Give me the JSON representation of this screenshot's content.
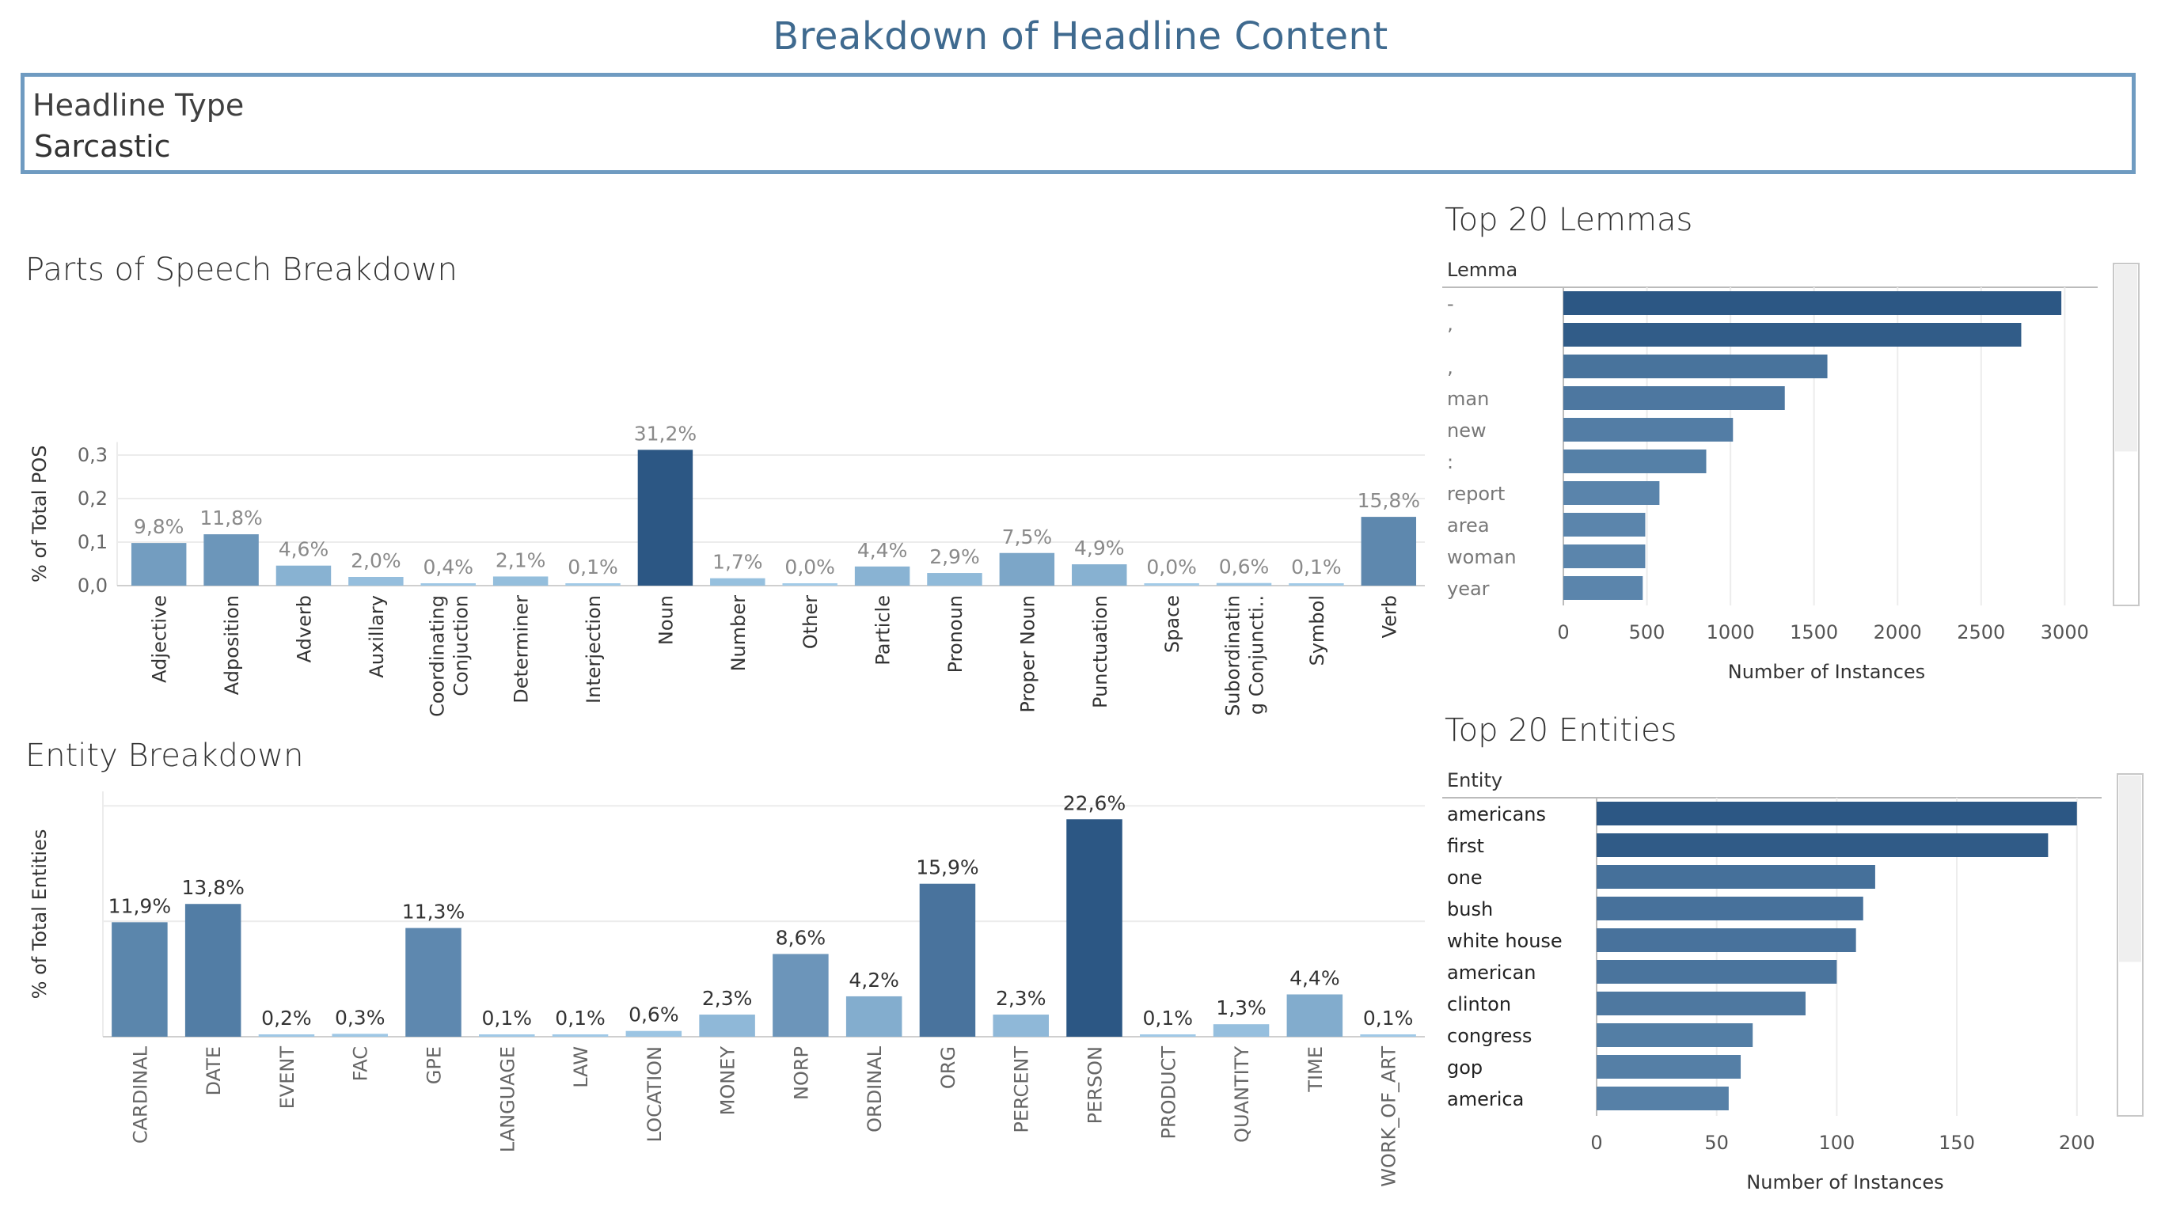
{
  "dashboard": {
    "title": "Breakdown of Headline Content"
  },
  "filter": {
    "title": "Headline Type",
    "value": "Sarcastic"
  },
  "colors": {
    "dark": "#2c5784",
    "mid": "#5b8dbf",
    "light": "#a2cbe8",
    "grid": "#ececec",
    "axis": "#cfcfcf"
  },
  "chart_data": [
    {
      "id": "pos",
      "type": "bar",
      "title": "Parts of Speech Breakdown",
      "ylabel": "% of Total POS",
      "xlabel": "",
      "ylim": [
        0,
        0.33
      ],
      "yticks": [
        0,
        0.1,
        0.2,
        0.3
      ],
      "ytick_labels": [
        "0,0",
        "0,1",
        "0,2",
        "0,3"
      ],
      "grid": true,
      "categories": [
        "Adjective",
        "Adposition",
        "Adverb",
        "Auxillary",
        "Coordinating Conjuction",
        "Determiner",
        "Interjection",
        "Noun",
        "Number",
        "Other",
        "Particle",
        "Pronoun",
        "Proper Noun",
        "Punctuation",
        "Space",
        "Subordinatin g Conjuncti..",
        "Symbol",
        "Verb"
      ],
      "values": [
        0.098,
        0.118,
        0.046,
        0.02,
        0.004,
        0.021,
        0.001,
        0.312,
        0.017,
        0.0,
        0.044,
        0.029,
        0.075,
        0.049,
        0.0,
        0.006,
        0.001,
        0.158
      ],
      "labels": [
        "9,8%",
        "11,8%",
        "4,6%",
        "2,0%",
        "0,4%",
        "2,1%",
        "0,1%",
        "31,2%",
        "1,7%",
        "0,0%",
        "4,4%",
        "2,9%",
        "7,5%",
        "4,9%",
        "0,0%",
        "0,6%",
        "0,1%",
        "15,8%"
      ]
    },
    {
      "id": "ent",
      "type": "bar",
      "title": "Entity Breakdown",
      "ylabel": "% of Total Entities",
      "xlabel": "",
      "ylim": [
        0,
        0.255
      ],
      "yticks": [],
      "ytick_labels": [],
      "grid": true,
      "categories": [
        "CARDINAL",
        "DATE",
        "EVENT",
        "FAC",
        "GPE",
        "LANGUAGE",
        "LAW",
        "LOCATION",
        "MONEY",
        "NORP",
        "ORDINAL",
        "ORG",
        "PERCENT",
        "PERSON",
        "PRODUCT",
        "QUANTITY",
        "TIME",
        "WORK_OF_ART"
      ],
      "values": [
        0.119,
        0.138,
        0.002,
        0.003,
        0.113,
        0.001,
        0.001,
        0.006,
        0.023,
        0.086,
        0.042,
        0.159,
        0.023,
        0.226,
        0.001,
        0.013,
        0.044,
        0.001
      ],
      "labels": [
        "11,9%",
        "13,8%",
        "0,2%",
        "0,3%",
        "11,3%",
        "0,1%",
        "0,1%",
        "0,6%",
        "2,3%",
        "8,6%",
        "4,2%",
        "15,9%",
        "2,3%",
        "22,6%",
        "0,1%",
        "1,3%",
        "4,4%",
        "0,1%"
      ]
    },
    {
      "id": "lemmas",
      "type": "bar",
      "orientation": "horizontal",
      "title": "Top 20 Lemmas",
      "row_header": "Lemma",
      "xlabel": "Number of Instances",
      "xlim": [
        0,
        3150
      ],
      "xticks": [
        0,
        500,
        1000,
        1500,
        2000,
        2500,
        3000
      ],
      "categories": [
        "-",
        "’",
        "‚",
        "man",
        "new",
        ":",
        "report",
        "area",
        "woman",
        "year"
      ],
      "values": [
        2980,
        2740,
        1580,
        1325,
        1015,
        855,
        575,
        490,
        490,
        475
      ]
    },
    {
      "id": "entities",
      "type": "bar",
      "orientation": "horizontal",
      "title": "Top 20 Entities",
      "row_header": "Entity",
      "xlabel": "Number of Instances",
      "xlim": [
        0,
        207
      ],
      "xticks": [
        0,
        50,
        100,
        150,
        200
      ],
      "categories": [
        "americans",
        "first",
        "one",
        "bush",
        "white house",
        "american",
        "clinton",
        "congress",
        "gop",
        "america"
      ],
      "values": [
        200,
        188,
        116,
        111,
        108,
        100,
        87,
        65,
        60,
        55
      ]
    }
  ]
}
